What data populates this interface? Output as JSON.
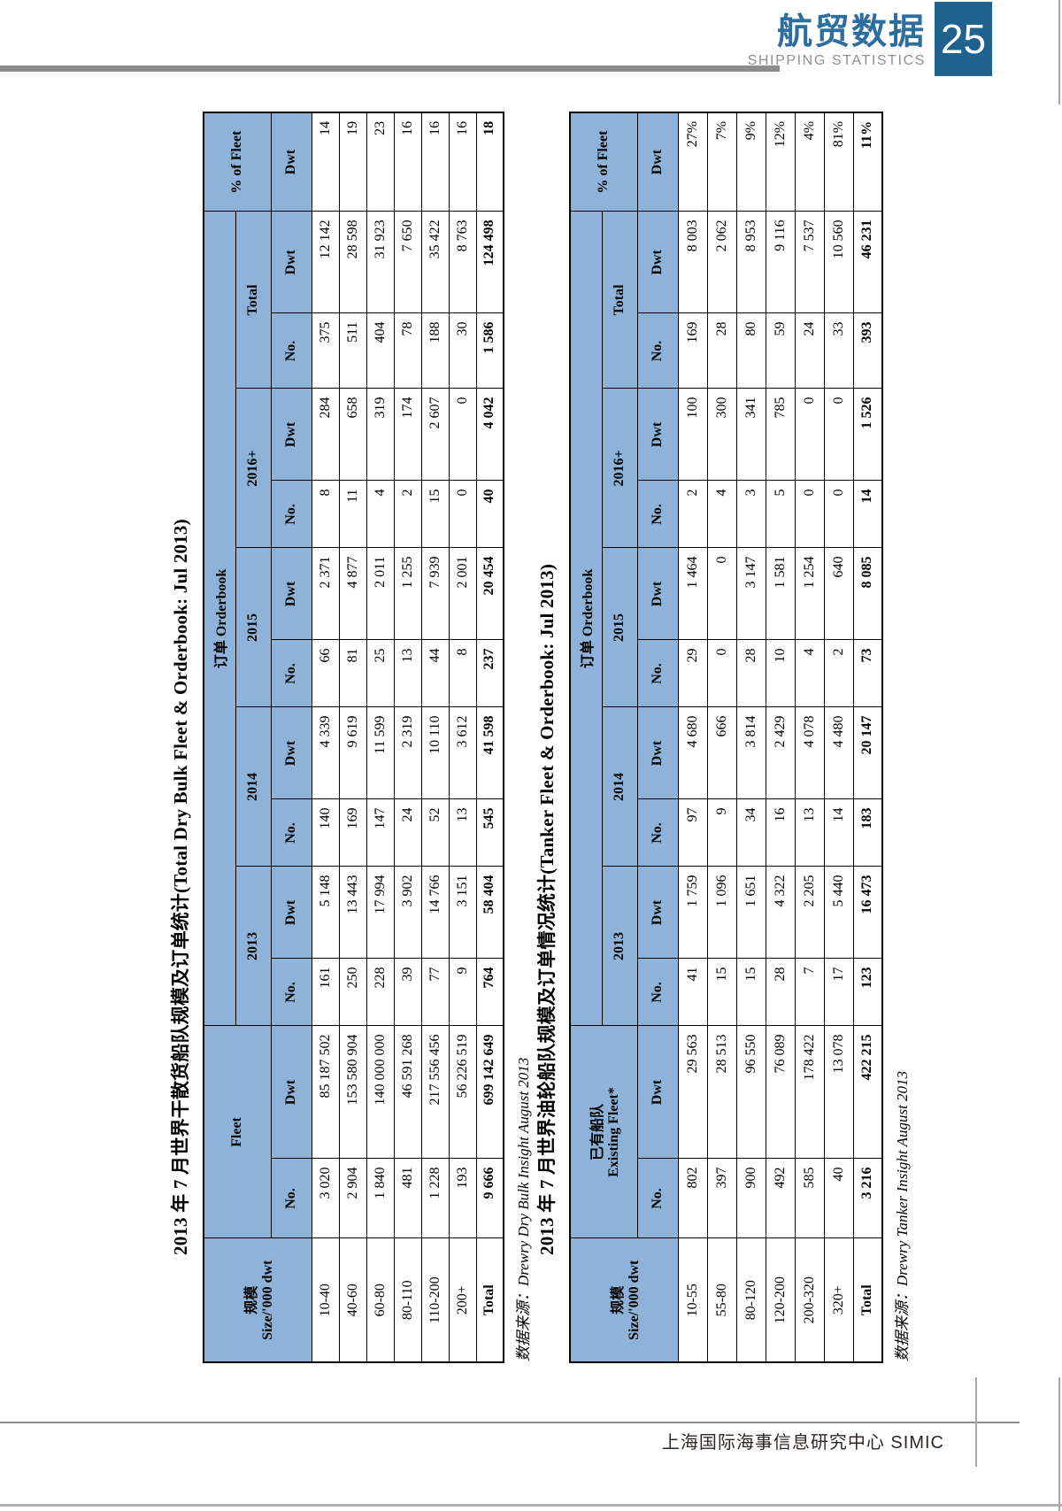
{
  "header": {
    "brand_cn": "航贸数据",
    "brand_en": "SHIPPING STATISTICS",
    "page_number": "25"
  },
  "footer": {
    "text": "上海国际海事信息研究中心  SIMIC"
  },
  "colors": {
    "brand_blue": "#2c6e9e",
    "page_box_blue": "#20618e",
    "table_header_blue": "#8fb3d8",
    "bar_gray": "#8c8c8c"
  },
  "tables": [
    {
      "title": "2013 年 7 月世界干散货船队规模及订单统计(Total Dry Bulk Fleet & Orderbook: Jul 2013)",
      "source": "数据来源：Drewry Dry Bulk Insight August 2013",
      "headers": {
        "size_cn": "规模",
        "size_en": "Size/'000 dwt",
        "fleet_cn": "",
        "fleet_en": "Fleet",
        "orderbook": "订单 Orderbook",
        "y2013": "2013",
        "y2014": "2014",
        "y2015": "2015",
        "y2016": "2016+",
        "total": "Total",
        "pct": "% of Fleet",
        "no": "No.",
        "dwt": "Dwt"
      },
      "rows": [
        {
          "bold": false,
          "cells": [
            "10-40",
            "3 020",
            "85 187 502",
            "161",
            "5 148",
            "140",
            "4 339",
            "66",
            "2 371",
            "8",
            "284",
            "375",
            "12 142",
            "14"
          ]
        },
        {
          "bold": false,
          "cells": [
            "40-60",
            "2 904",
            "153 580 904",
            "250",
            "13 443",
            "169",
            "9 619",
            "81",
            "4 877",
            "11",
            "658",
            "511",
            "28 598",
            "19"
          ]
        },
        {
          "bold": false,
          "cells": [
            "60-80",
            "1 840",
            "140 000 000",
            "228",
            "17 994",
            "147",
            "11 599",
            "25",
            "2 011",
            "4",
            "319",
            "404",
            "31 923",
            "23"
          ]
        },
        {
          "bold": false,
          "cells": [
            "80-110",
            "481",
            "46 591 268",
            "39",
            "3 902",
            "24",
            "2 319",
            "13",
            "1 255",
            "2",
            "174",
            "78",
            "7 650",
            "16"
          ]
        },
        {
          "bold": false,
          "cells": [
            "110-200",
            "1 228",
            "217 556 456",
            "77",
            "14 766",
            "52",
            "10 110",
            "44",
            "7 939",
            "15",
            "2 607",
            "188",
            "35 422",
            "16"
          ]
        },
        {
          "bold": false,
          "cells": [
            "200+",
            "193",
            "56 226 519",
            "9",
            "3 151",
            "13",
            "3 612",
            "8",
            "2 001",
            "0",
            "0",
            "30",
            "8 763",
            "16"
          ]
        },
        {
          "bold": true,
          "cells": [
            "Total",
            "9 666",
            "699 142 649",
            "764",
            "58 404",
            "545",
            "41 598",
            "237",
            "20 454",
            "40",
            "4 042",
            "1 586",
            "124 498",
            "18"
          ]
        }
      ]
    },
    {
      "title": "2013 年 7 月世界油轮船队规模及订单情况统计(Tanker Fleet & Orderbook: Jul 2013)",
      "source": "数据来源：Drewry Tanker Insight August 2013",
      "headers": {
        "size_cn": "规模",
        "size_en": "Size/'000 dwt",
        "fleet_cn": "已有船队",
        "fleet_en": "Existing Fleet*",
        "orderbook": "订单 Orderbook",
        "y2013": "2013",
        "y2014": "2014",
        "y2015": "2015",
        "y2016": "2016+",
        "total": "Total",
        "pct": "% of Fleet",
        "no": "No.",
        "dwt": "Dwt"
      },
      "rows": [
        {
          "bold": false,
          "cells": [
            "10-55",
            "802",
            "29 563",
            "41",
            "1 759",
            "97",
            "4 680",
            "29",
            "1 464",
            "2",
            "100",
            "169",
            "8 003",
            "27%"
          ]
        },
        {
          "bold": false,
          "cells": [
            "55-80",
            "397",
            "28 513",
            "15",
            "1 096",
            "9",
            "666",
            "0",
            "0",
            "4",
            "300",
            "28",
            "2 062",
            "7%"
          ]
        },
        {
          "bold": false,
          "cells": [
            "80-120",
            "900",
            "96 550",
            "15",
            "1 651",
            "34",
            "3 814",
            "28",
            "3 147",
            "3",
            "341",
            "80",
            "8 953",
            "9%"
          ]
        },
        {
          "bold": false,
          "cells": [
            "120-200",
            "492",
            "76 089",
            "28",
            "4 322",
            "16",
            "2 429",
            "10",
            "1 581",
            "5",
            "785",
            "59",
            "9 116",
            "12%"
          ]
        },
        {
          "bold": false,
          "cells": [
            "200-320",
            "585",
            "178 422",
            "7",
            "2 205",
            "13",
            "4 078",
            "4",
            "1 254",
            "0",
            "0",
            "24",
            "7 537",
            "4%"
          ]
        },
        {
          "bold": false,
          "cells": [
            "320+",
            "40",
            "13 078",
            "17",
            "5 440",
            "14",
            "4 480",
            "2",
            "640",
            "0",
            "0",
            "33",
            "10 560",
            "81%"
          ]
        },
        {
          "bold": true,
          "cells": [
            "Total",
            "3 216",
            "422 215",
            "123",
            "16 473",
            "183",
            "20 147",
            "73",
            "8 085",
            "14",
            "1 526",
            "393",
            "46 231",
            "11%"
          ]
        }
      ]
    }
  ]
}
